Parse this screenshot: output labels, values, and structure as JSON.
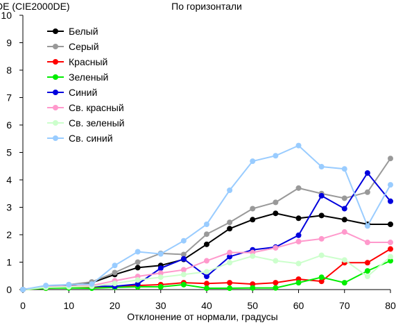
{
  "chart_data": {
    "type": "line",
    "title": "По горизонтали",
    "ylabel": "DE (CIE2000DE)",
    "xlabel": "Отклонение от нормали, градусы",
    "xlim": [
      0,
      80
    ],
    "ylim": [
      0,
      10
    ],
    "xticks": [
      0,
      10,
      20,
      30,
      40,
      50,
      60,
      70,
      80
    ],
    "yticks": [
      0,
      1,
      2,
      3,
      4,
      5,
      6,
      7,
      8,
      9,
      10
    ],
    "grid": false,
    "legend_position": "top-left",
    "x": [
      0,
      5,
      10,
      15,
      20,
      25,
      30,
      35,
      40,
      45,
      50,
      55,
      60,
      65,
      70,
      75,
      80
    ],
    "series": [
      {
        "name": "Белый",
        "color": "#000000",
        "values": [
          0,
          0.12,
          0.15,
          0.25,
          0.55,
          0.8,
          0.88,
          1.1,
          1.65,
          2.22,
          2.55,
          2.78,
          2.6,
          2.7,
          2.55,
          2.38,
          2.38
        ]
      },
      {
        "name": "Серый",
        "color": "#999999",
        "values": [
          0,
          0.12,
          0.18,
          0.28,
          0.62,
          1.0,
          1.32,
          1.28,
          2.02,
          2.45,
          2.95,
          3.18,
          3.7,
          3.5,
          3.33,
          3.55,
          4.78
        ]
      },
      {
        "name": "Красный",
        "color": "#ff0000",
        "values": [
          0,
          0.05,
          0.08,
          0.08,
          0.1,
          0.15,
          0.18,
          0.25,
          0.22,
          0.25,
          0.2,
          0.25,
          0.38,
          0.3,
          0.98,
          0.98,
          1.48
        ]
      },
      {
        "name": "Зеленый",
        "color": "#00ee00",
        "values": [
          0,
          0.05,
          0.06,
          0.05,
          0.08,
          0.1,
          0.1,
          0.18,
          0.05,
          0.05,
          0.06,
          0.06,
          0.25,
          0.45,
          0.25,
          0.68,
          1.05
        ]
      },
      {
        "name": "Синий",
        "color": "#0000dd",
        "values": [
          0,
          0.1,
          0.12,
          0.12,
          0.12,
          0.2,
          0.78,
          1.12,
          0.48,
          1.2,
          1.45,
          1.55,
          1.98,
          3.42,
          2.95,
          4.25,
          3.22
        ]
      },
      {
        "name": "Св. красный",
        "color": "#ff99cc",
        "values": [
          0,
          0.1,
          0.12,
          0.15,
          0.32,
          0.48,
          0.6,
          0.72,
          1.05,
          1.35,
          1.35,
          1.52,
          1.75,
          1.85,
          2.1,
          1.72,
          1.72
        ]
      },
      {
        "name": "Св. зеленый",
        "color": "#ccffcc",
        "values": [
          0,
          0.08,
          0.1,
          0.12,
          0.22,
          0.35,
          0.45,
          0.55,
          0.65,
          0.98,
          1.22,
          1.05,
          0.95,
          1.25,
          1.08,
          0.48,
          1.2
        ]
      },
      {
        "name": "Св. синий",
        "color": "#99ccff",
        "values": [
          0,
          0.15,
          0.18,
          0.2,
          0.88,
          1.38,
          1.3,
          1.78,
          2.38,
          3.62,
          4.68,
          4.88,
          5.25,
          4.48,
          4.4,
          2.32,
          3.82
        ]
      }
    ]
  }
}
